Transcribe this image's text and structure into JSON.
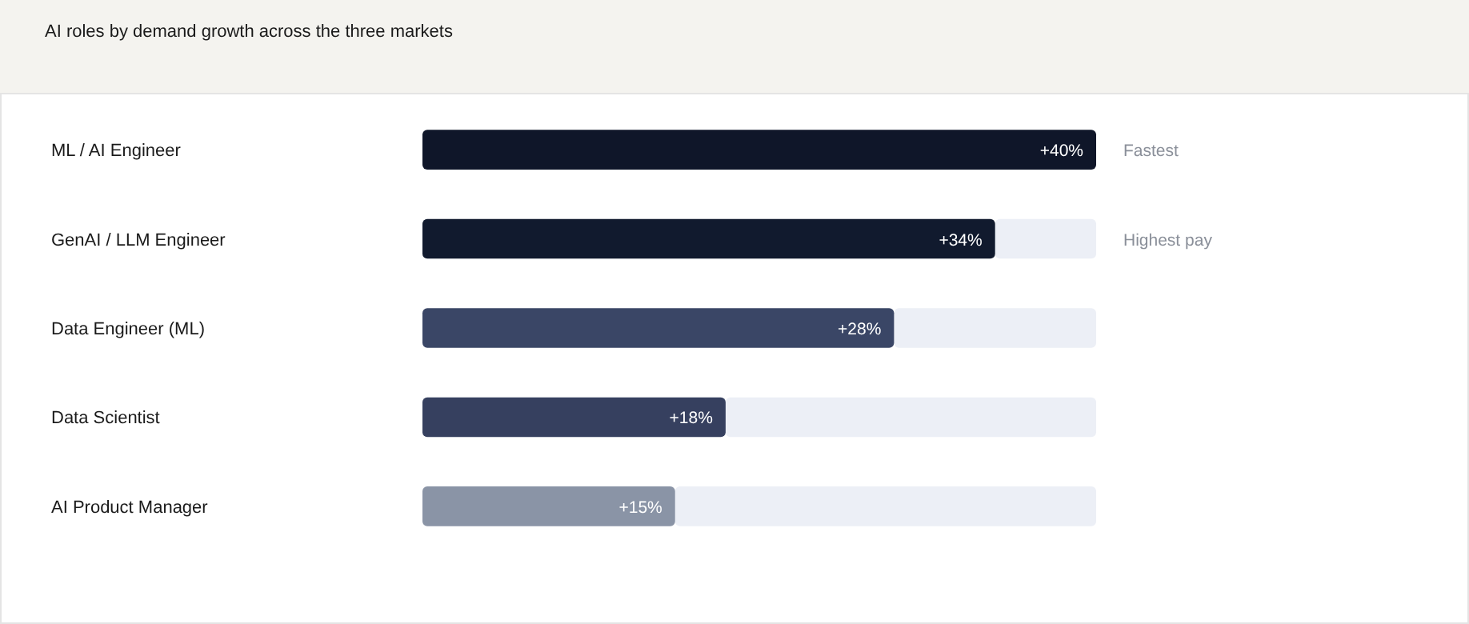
{
  "chart_data": {
    "type": "bar",
    "orientation": "horizontal",
    "title": "AI roles by demand growth across the three markets",
    "categories": [
      "ML / AI Engineer",
      "GenAI / LLM Engineer",
      "Data Engineer (ML)",
      "Data Scientist",
      "AI Product Manager"
    ],
    "values": [
      40,
      34,
      28,
      18,
      15
    ],
    "colors": [
      "#0f1629",
      "#111a2e",
      "#3a4666",
      "#36405f",
      "#8a94a6"
    ],
    "value_labels": [
      "+40%",
      "+34%",
      "+28%",
      "+18%",
      "+15%"
    ],
    "xlim": [
      0,
      40
    ],
    "annotations": [
      {
        "text": "Fastest",
        "x": 40,
        "y": "ML / AI Engineer"
      },
      "Highest pay"
    ]
  }
}
